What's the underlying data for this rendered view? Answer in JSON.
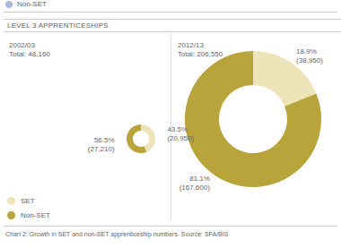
{
  "top_legend": {
    "label": "Non-SET",
    "color": "#a9bbdf"
  },
  "section_title": "LEVEL 3 APPRENTICESHIPS",
  "chart_data": [
    {
      "type": "pie",
      "title": "2002/03",
      "subtitle": "Total: 48,160",
      "categories": [
        "SET",
        "Non-SET"
      ],
      "values": [
        43.5,
        56.5
      ],
      "value_labels": [
        "43.5%",
        "56.5%"
      ],
      "counts": [
        20950,
        27210
      ],
      "count_labels": [
        "(20,950)",
        "(27,210)"
      ],
      "colors": [
        "#ede4b9",
        "#b9a43c"
      ],
      "data_labels": true
    },
    {
      "type": "pie",
      "title": "2012/13",
      "subtitle": "Total: 206,550",
      "categories": [
        "SET",
        "Non-SET"
      ],
      "values": [
        18.9,
        81.1
      ],
      "value_labels": [
        "18.9%",
        "81.1%"
      ],
      "counts": [
        38950,
        167600
      ],
      "count_labels": [
        "(38,950)",
        "(167,600)"
      ],
      "colors": [
        "#ede4b9",
        "#b9a43c"
      ],
      "data_labels": true
    }
  ],
  "legend": [
    {
      "name": "SET",
      "color": "#ede4b9"
    },
    {
      "name": "Non-SET",
      "color": "#b9a43c"
    }
  ],
  "caption": "Chart 2: Growth in SET and non-SET apprenticeship numbers. Source: SFA/BIS"
}
